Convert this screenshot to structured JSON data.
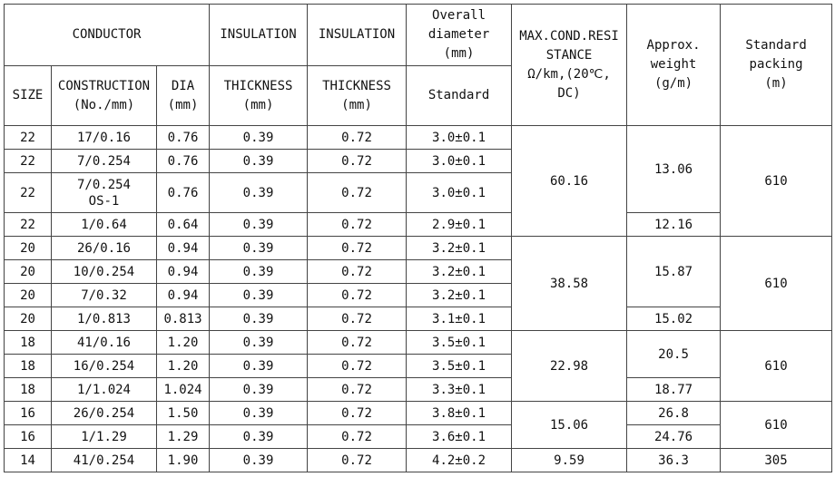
{
  "header": {
    "row1": [
      "CONDUCTOR",
      "INSULATION",
      "INSULATION",
      "Overall\ndiameter\n(mm)",
      "MAX.COND.RESI\nSTANCE\nΩ/km,(20℃,\nDC)",
      "Approx.\nweight\n(g/m)",
      "Standard\npacking\n(m)"
    ],
    "row2": [
      "SIZE",
      "CONSTRUCTION\n(No./mm)",
      "DIA\n(mm)",
      "THICKNESS\n(mm)",
      "THICKNESS\n(mm)",
      "Standard"
    ]
  },
  "table": {
    "rows": [
      [
        "22",
        "17/0.16",
        "0.76",
        "0.39",
        "0.72",
        "3.0±0.1"
      ],
      [
        "22",
        "7/0.254",
        "0.76",
        "0.39",
        "0.72",
        "3.0±0.1"
      ],
      [
        "22",
        "7/0.254\nOS-1",
        "0.76",
        "0.39",
        "0.72",
        "3.0±0.1"
      ],
      [
        "22",
        "1/0.64",
        "0.64",
        "0.39",
        "0.72",
        "2.9±0.1"
      ],
      [
        "20",
        "26/0.16",
        "0.94",
        "0.39",
        "0.72",
        "3.2±0.1"
      ],
      [
        "20",
        "10/0.254",
        "0.94",
        "0.39",
        "0.72",
        "3.2±0.1"
      ],
      [
        "20",
        "7/0.32",
        "0.94",
        "0.39",
        "0.72",
        "3.2±0.1"
      ],
      [
        "20",
        "1/0.813",
        "0.813",
        "0.39",
        "0.72",
        "3.1±0.1"
      ],
      [
        "18",
        "41/0.16",
        "1.20",
        "0.39",
        "0.72",
        "3.5±0.1"
      ],
      [
        "18",
        "16/0.254",
        "1.20",
        "0.39",
        "0.72",
        "3.5±0.1"
      ],
      [
        "18",
        "1/1.024",
        "1.024",
        "0.39",
        "0.72",
        "3.3±0.1"
      ],
      [
        "16",
        "26/0.254",
        "1.50",
        "0.39",
        "0.72",
        "3.8±0.1"
      ],
      [
        "16",
        "1/1.29",
        "1.29",
        "0.39",
        "0.72",
        "3.6±0.1"
      ],
      [
        "14",
        "41/0.254",
        "1.90",
        "0.39",
        "0.72",
        "4.2±0.2"
      ]
    ],
    "resistance": [
      "60.16",
      "38.58",
      "22.98",
      "15.06",
      "9.59"
    ],
    "weight": [
      "13.06",
      "12.16",
      "15.87",
      "15.02",
      "20.5",
      "18.77",
      "26.8",
      "24.76",
      "36.3"
    ],
    "packing": [
      "610",
      "610",
      "610",
      "610",
      "305"
    ]
  }
}
